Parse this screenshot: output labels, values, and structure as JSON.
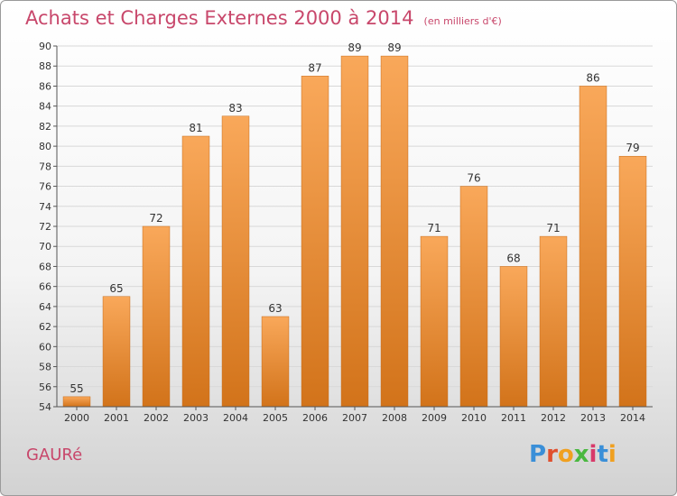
{
  "title": "Achats et Charges Externes 2000 à 2014",
  "unit_label": "(en milliers d'€)",
  "commune": "GAURé",
  "logo": {
    "text": "Proxiti",
    "colors": [
      "#3a8fd8",
      "#e0502e",
      "#f0a020",
      "#4ab840",
      "#d83a6a",
      "#3a8fd8",
      "#f0a020"
    ]
  },
  "colors": {
    "bar_top": "#f9a85a",
    "bar_bottom": "#d2731a",
    "axis": "#555555",
    "grid": "#d8d8d8",
    "accent": "#c8476b"
  },
  "chart_data": {
    "type": "bar",
    "title": "Achats et Charges Externes 2000 à 2014",
    "xlabel": "",
    "ylabel": "",
    "categories": [
      "2000",
      "2001",
      "2002",
      "2003",
      "2004",
      "2005",
      "2006",
      "2007",
      "2008",
      "2009",
      "2010",
      "2011",
      "2012",
      "2013",
      "2014"
    ],
    "values": [
      55,
      65,
      72,
      81,
      83,
      63,
      87,
      89,
      89,
      71,
      76,
      68,
      71,
      86,
      79
    ],
    "ylim": [
      54,
      90
    ],
    "yticks": [
      54,
      56,
      58,
      60,
      62,
      64,
      66,
      68,
      70,
      72,
      74,
      76,
      78,
      80,
      82,
      84,
      86,
      88,
      90
    ],
    "grid": true
  }
}
